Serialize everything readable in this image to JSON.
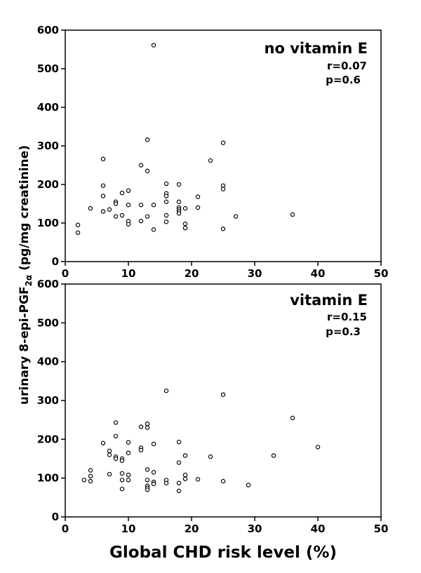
{
  "chart_data": [
    {
      "type": "scatter",
      "title": "no vitamin E",
      "annotations": [
        "r=0.07",
        "p=0.6"
      ],
      "xlim": [
        0,
        50
      ],
      "ylim": [
        0,
        600
      ],
      "x_ticks": [
        "0",
        "10",
        "20",
        "30",
        "40",
        "50"
      ],
      "y_ticks": [
        "0",
        "100",
        "200",
        "300",
        "400",
        "500",
        "600"
      ],
      "grid": false,
      "points": [
        {
          "x": 2,
          "y": 95
        },
        {
          "x": 2,
          "y": 75
        },
        {
          "x": 4,
          "y": 138
        },
        {
          "x": 6,
          "y": 266
        },
        {
          "x": 6,
          "y": 197
        },
        {
          "x": 6,
          "y": 170
        },
        {
          "x": 6,
          "y": 130
        },
        {
          "x": 7,
          "y": 135
        },
        {
          "x": 8,
          "y": 155
        },
        {
          "x": 8,
          "y": 150
        },
        {
          "x": 8,
          "y": 117
        },
        {
          "x": 9,
          "y": 178
        },
        {
          "x": 9,
          "y": 120
        },
        {
          "x": 10,
          "y": 184
        },
        {
          "x": 10,
          "y": 147
        },
        {
          "x": 10,
          "y": 105
        },
        {
          "x": 10,
          "y": 97
        },
        {
          "x": 12,
          "y": 250
        },
        {
          "x": 12,
          "y": 147
        },
        {
          "x": 12,
          "y": 105
        },
        {
          "x": 13,
          "y": 316
        },
        {
          "x": 13,
          "y": 235
        },
        {
          "x": 13,
          "y": 117
        },
        {
          "x": 14,
          "y": 561
        },
        {
          "x": 14,
          "y": 147
        },
        {
          "x": 14,
          "y": 83
        },
        {
          "x": 16,
          "y": 202
        },
        {
          "x": 16,
          "y": 177
        },
        {
          "x": 16,
          "y": 170
        },
        {
          "x": 16,
          "y": 155
        },
        {
          "x": 16,
          "y": 120
        },
        {
          "x": 16,
          "y": 103
        },
        {
          "x": 18,
          "y": 200
        },
        {
          "x": 18,
          "y": 155
        },
        {
          "x": 18,
          "y": 140
        },
        {
          "x": 18,
          "y": 135
        },
        {
          "x": 18,
          "y": 130
        },
        {
          "x": 18,
          "y": 125
        },
        {
          "x": 19,
          "y": 138
        },
        {
          "x": 19,
          "y": 98
        },
        {
          "x": 19,
          "y": 87
        },
        {
          "x": 21,
          "y": 168
        },
        {
          "x": 21,
          "y": 140
        },
        {
          "x": 23,
          "y": 262
        },
        {
          "x": 25,
          "y": 308
        },
        {
          "x": 25,
          "y": 197
        },
        {
          "x": 25,
          "y": 188
        },
        {
          "x": 25,
          "y": 85
        },
        {
          "x": 27,
          "y": 117
        },
        {
          "x": 36,
          "y": 122
        }
      ]
    },
    {
      "type": "scatter",
      "title": "vitamin  E",
      "annotations": [
        "r=0.15",
        "p=0.3"
      ],
      "xlim": [
        0,
        50
      ],
      "ylim": [
        0,
        600
      ],
      "x_ticks": [
        "0",
        "10",
        "20",
        "30",
        "40",
        "50"
      ],
      "y_ticks": [
        "0",
        "100",
        "200",
        "300",
        "400",
        "500",
        "600"
      ],
      "grid": false,
      "points": [
        {
          "x": 3,
          "y": 95
        },
        {
          "x": 4,
          "y": 120
        },
        {
          "x": 4,
          "y": 105
        },
        {
          "x": 4,
          "y": 92
        },
        {
          "x": 6,
          "y": 190
        },
        {
          "x": 7,
          "y": 170
        },
        {
          "x": 7,
          "y": 160
        },
        {
          "x": 7,
          "y": 110
        },
        {
          "x": 8,
          "y": 243
        },
        {
          "x": 8,
          "y": 208
        },
        {
          "x": 8,
          "y": 155
        },
        {
          "x": 8,
          "y": 150
        },
        {
          "x": 9,
          "y": 150
        },
        {
          "x": 9,
          "y": 145
        },
        {
          "x": 9,
          "y": 112
        },
        {
          "x": 9,
          "y": 95
        },
        {
          "x": 9,
          "y": 72
        },
        {
          "x": 10,
          "y": 192
        },
        {
          "x": 10,
          "y": 165
        },
        {
          "x": 10,
          "y": 108
        },
        {
          "x": 10,
          "y": 95
        },
        {
          "x": 12,
          "y": 232
        },
        {
          "x": 12,
          "y": 178
        },
        {
          "x": 12,
          "y": 172
        },
        {
          "x": 13,
          "y": 240
        },
        {
          "x": 13,
          "y": 230
        },
        {
          "x": 13,
          "y": 122
        },
        {
          "x": 13,
          "y": 95
        },
        {
          "x": 13,
          "y": 80
        },
        {
          "x": 13,
          "y": 75
        },
        {
          "x": 13,
          "y": 70
        },
        {
          "x": 14,
          "y": 188
        },
        {
          "x": 14,
          "y": 115
        },
        {
          "x": 14,
          "y": 90
        },
        {
          "x": 14,
          "y": 85
        },
        {
          "x": 16,
          "y": 325
        },
        {
          "x": 16,
          "y": 95
        },
        {
          "x": 16,
          "y": 87
        },
        {
          "x": 18,
          "y": 193
        },
        {
          "x": 18,
          "y": 140
        },
        {
          "x": 18,
          "y": 87
        },
        {
          "x": 18,
          "y": 67
        },
        {
          "x": 19,
          "y": 158
        },
        {
          "x": 19,
          "y": 108
        },
        {
          "x": 19,
          "y": 98
        },
        {
          "x": 21,
          "y": 97
        },
        {
          "x": 23,
          "y": 155
        },
        {
          "x": 25,
          "y": 315
        },
        {
          "x": 25,
          "y": 92
        },
        {
          "x": 29,
          "y": 82
        },
        {
          "x": 33,
          "y": 158
        },
        {
          "x": 36,
          "y": 255
        },
        {
          "x": 40,
          "y": 180
        }
      ]
    }
  ],
  "shared": {
    "ylabel_text": "urinary 8-epi-PGF",
    "ylabel_subscript": "2α",
    "ylabel_units": " (pg/mg creatinine)",
    "xlabel": "Global CHD risk level (%)"
  }
}
